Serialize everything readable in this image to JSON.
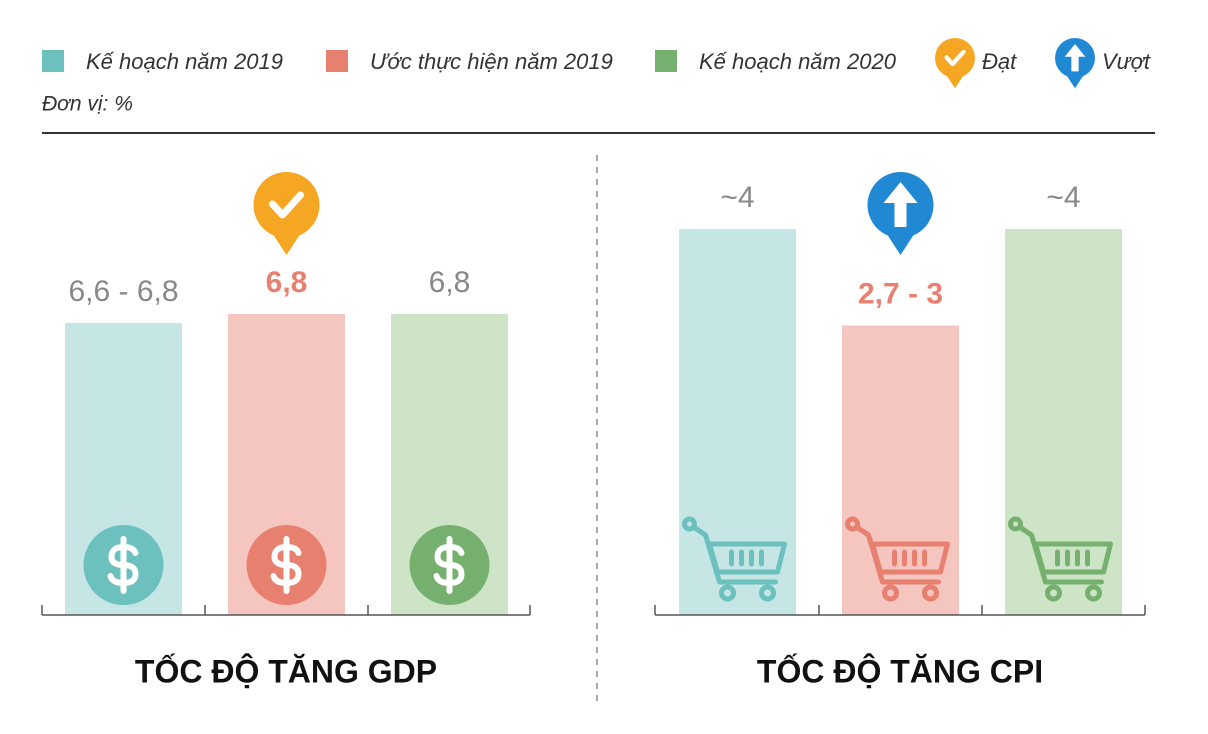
{
  "legend": {
    "series": [
      {
        "name": "Kế hoạch năm 2019",
        "color": "#6cc0bd"
      },
      {
        "name": "Ước thực hiện năm 2019",
        "color": "#e8806f"
      },
      {
        "name": "Kế hoạch năm 2020",
        "color": "#76b06e"
      }
    ],
    "status": [
      {
        "name": "Đạt",
        "color": "#f5a623",
        "symbol": "check"
      },
      {
        "name": "Vượt",
        "color": "#2189d4",
        "symbol": "arrow-up"
      }
    ]
  },
  "unit_note": "Đơn vị: %",
  "chart_data": [
    {
      "type": "bar",
      "title": "TỐC ĐỘ TĂNG GDP",
      "values": [
        6.6,
        6.8,
        6.8
      ],
      "value_labels": [
        "6,6 - 6,8",
        "6,8",
        "6,8"
      ],
      "bar_colors": [
        "#c5e6e5",
        "#f5c6c0",
        "#cde4c6"
      ],
      "icon": "dollar",
      "status_bar": 1,
      "status": 0
    },
    {
      "type": "bar",
      "title": "TỐC ĐỘ TĂNG CPI",
      "values": [
        4,
        3,
        4
      ],
      "value_labels": [
        "~4",
        "2,7 - 3",
        "~4"
      ],
      "bar_colors": [
        "#c5e6e5",
        "#f5c6c0",
        "#cde4c6"
      ],
      "icon": "cart",
      "status_bar": 1,
      "status": 1
    }
  ]
}
